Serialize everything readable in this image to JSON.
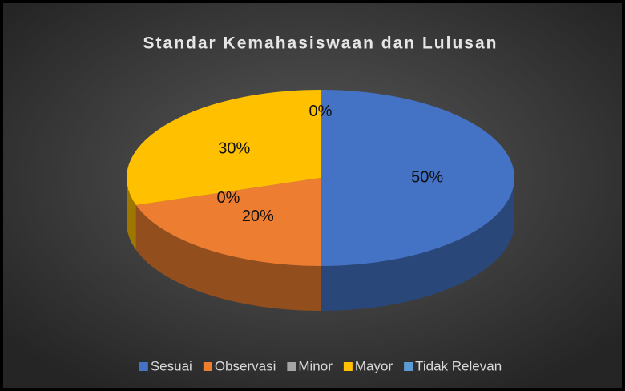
{
  "chart_data": {
    "type": "pie",
    "title": "Standar Kemahasiswaan dan Lulusan",
    "categories": [
      "Sesuai",
      "Observasi",
      "Minor",
      "Mayor",
      "Tidak Relevan"
    ],
    "values": [
      50,
      20,
      0,
      30,
      0
    ],
    "value_labels": [
      "50%",
      "20%",
      "0%",
      "30%",
      "0%"
    ],
    "colors": [
      "#4472c4",
      "#ed7d31",
      "#a5a5a5",
      "#ffc000",
      "#5b9bd5"
    ],
    "legend": "bottom"
  }
}
